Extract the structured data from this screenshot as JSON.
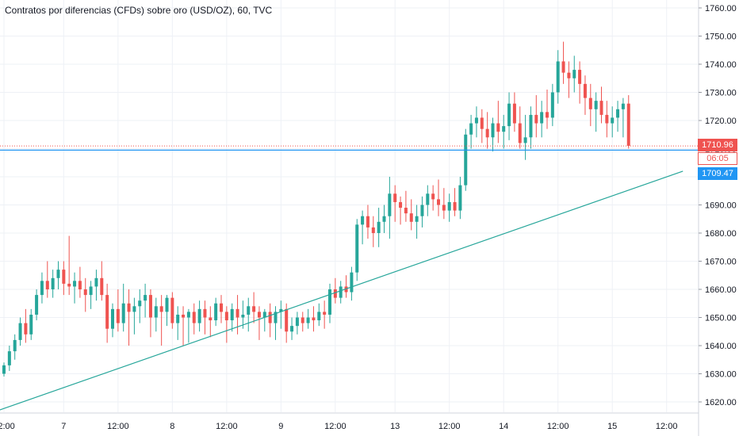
{
  "header": {
    "title": "Contratos por diferencias (CFDs) sobre oro (USD/OZ), 60, TVC"
  },
  "price_tags": {
    "last_price": "1710.96",
    "countdown": "06:05",
    "horizontal_line": "1709.47"
  },
  "colors": {
    "up": "#26a69a",
    "down": "#ef5350",
    "trendline": "#26a69a",
    "hline": "#2196f3",
    "grid": "#eef1f6",
    "axis_text": "#131722"
  },
  "chart_data": {
    "type": "candlestick",
    "title": "Contratos por diferencias (CFDs) sobre oro (USD/OZ), 60, TVC",
    "interval": "60",
    "xlabel": "",
    "ylabel": "",
    "ylim": [
      1615,
      1765
    ],
    "y_ticks": [
      "1620.00",
      "1630.00",
      "1640.00",
      "1650.00",
      "1660.00",
      "1670.00",
      "1680.00",
      "1690.00",
      "1700.00",
      "1710.00",
      "1720.00",
      "1730.00",
      "1740.00",
      "1750.00",
      "1760.00"
    ],
    "x_ticks": [
      {
        "label": "12:00",
        "idx": 0
      },
      {
        "label": "7",
        "idx": 11
      },
      {
        "label": "12:00",
        "idx": 21
      },
      {
        "label": "8",
        "idx": 31
      },
      {
        "label": "12:00",
        "idx": 41
      },
      {
        "label": "9",
        "idx": 51
      },
      {
        "label": "12:00",
        "idx": 61
      },
      {
        "label": "13",
        "idx": 72
      },
      {
        "label": "12:00",
        "idx": 82
      },
      {
        "label": "14",
        "idx": 92
      },
      {
        "label": "12:00",
        "idx": 102
      },
      {
        "label": "15",
        "idx": 112
      },
      {
        "label": "12:00",
        "idx": 122
      }
    ],
    "grid": true,
    "last_price": 1710.96,
    "horizontal_line_price": 1709.47,
    "trendline": {
      "from": {
        "idx": -1,
        "price": 1617
      },
      "to": {
        "idx": 125,
        "price": 1702
      }
    },
    "ohlc": [
      [
        1630,
        1634,
        1629,
        1633
      ],
      [
        1633,
        1640,
        1631,
        1638
      ],
      [
        1638,
        1644,
        1635,
        1642
      ],
      [
        1642,
        1650,
        1640,
        1648
      ],
      [
        1648,
        1653,
        1641,
        1644
      ],
      [
        1644,
        1653,
        1642,
        1651
      ],
      [
        1651,
        1660,
        1649,
        1658
      ],
      [
        1658,
        1666,
        1655,
        1663
      ],
      [
        1663,
        1670,
        1657,
        1660
      ],
      [
        1660,
        1667,
        1657,
        1664
      ],
      [
        1664,
        1670,
        1660,
        1667
      ],
      [
        1667,
        1670,
        1658,
        1662
      ],
      [
        1662,
        1679,
        1658,
        1661
      ],
      [
        1661,
        1666,
        1655,
        1663
      ],
      [
        1663,
        1668,
        1657,
        1660
      ],
      [
        1660,
        1664,
        1652,
        1658
      ],
      [
        1658,
        1663,
        1653,
        1661
      ],
      [
        1661,
        1667,
        1656,
        1664
      ],
      [
        1664,
        1670,
        1656,
        1658
      ],
      [
        1658,
        1662,
        1641,
        1646
      ],
      [
        1646,
        1655,
        1643,
        1653
      ],
      [
        1653,
        1660,
        1645,
        1648
      ],
      [
        1648,
        1662,
        1645,
        1655
      ],
      [
        1655,
        1660,
        1640,
        1652
      ],
      [
        1652,
        1657,
        1644,
        1654
      ],
      [
        1654,
        1660,
        1648,
        1656
      ],
      [
        1656,
        1662,
        1650,
        1658
      ],
      [
        1658,
        1660,
        1643,
        1650
      ],
      [
        1650,
        1657,
        1645,
        1654
      ],
      [
        1654,
        1658,
        1640,
        1652
      ],
      [
        1652,
        1658,
        1647,
        1657
      ],
      [
        1657,
        1659,
        1646,
        1648
      ],
      [
        1648,
        1654,
        1642,
        1651
      ],
      [
        1651,
        1654,
        1640,
        1650
      ],
      [
        1650,
        1653,
        1641,
        1652
      ],
      [
        1652,
        1655,
        1644,
        1648
      ],
      [
        1648,
        1656,
        1645,
        1653
      ],
      [
        1653,
        1656,
        1644,
        1650
      ],
      [
        1650,
        1654,
        1643,
        1649
      ],
      [
        1649,
        1657,
        1647,
        1655
      ],
      [
        1655,
        1658,
        1648,
        1652
      ],
      [
        1652,
        1654,
        1641,
        1649
      ],
      [
        1649,
        1655,
        1645,
        1653
      ],
      [
        1653,
        1658,
        1644,
        1650
      ],
      [
        1650,
        1656,
        1646,
        1651
      ],
      [
        1651,
        1657,
        1645,
        1654
      ],
      [
        1654,
        1659,
        1648,
        1652
      ],
      [
        1652,
        1654,
        1642,
        1650
      ],
      [
        1650,
        1653,
        1645,
        1652
      ],
      [
        1652,
        1655,
        1643,
        1648
      ],
      [
        1648,
        1654,
        1642,
        1652
      ],
      [
        1652,
        1656,
        1646,
        1653
      ],
      [
        1653,
        1655,
        1641,
        1645
      ],
      [
        1645,
        1650,
        1642,
        1647
      ],
      [
        1647,
        1652,
        1644,
        1650
      ],
      [
        1650,
        1652,
        1645,
        1648
      ],
      [
        1648,
        1653,
        1646,
        1650
      ],
      [
        1650,
        1654,
        1645,
        1649
      ],
      [
        1649,
        1655,
        1647,
        1652
      ],
      [
        1652,
        1656,
        1646,
        1651
      ],
      [
        1651,
        1662,
        1648,
        1660
      ],
      [
        1660,
        1664,
        1655,
        1657
      ],
      [
        1657,
        1663,
        1655,
        1661
      ],
      [
        1661,
        1665,
        1657,
        1659
      ],
      [
        1659,
        1668,
        1656,
        1666
      ],
      [
        1666,
        1685,
        1663,
        1683
      ],
      [
        1683,
        1688,
        1676,
        1686
      ],
      [
        1686,
        1690,
        1678,
        1682
      ],
      [
        1682,
        1686,
        1675,
        1680
      ],
      [
        1680,
        1689,
        1675,
        1684
      ],
      [
        1684,
        1690,
        1680,
        1686
      ],
      [
        1686,
        1700,
        1678,
        1694
      ],
      [
        1694,
        1697,
        1684,
        1691
      ],
      [
        1691,
        1693,
        1683,
        1689
      ],
      [
        1689,
        1695,
        1684,
        1687
      ],
      [
        1687,
        1692,
        1681,
        1684
      ],
      [
        1684,
        1690,
        1678,
        1686
      ],
      [
        1686,
        1693,
        1682,
        1690
      ],
      [
        1690,
        1697,
        1686,
        1694
      ],
      [
        1694,
        1697,
        1688,
        1692
      ],
      [
        1692,
        1699,
        1686,
        1690
      ],
      [
        1690,
        1696,
        1685,
        1688
      ],
      [
        1688,
        1694,
        1684,
        1691
      ],
      [
        1691,
        1696,
        1686,
        1688
      ],
      [
        1688,
        1700,
        1685,
        1697
      ],
      [
        1697,
        1717,
        1695,
        1715
      ],
      [
        1715,
        1722,
        1710,
        1719
      ],
      [
        1719,
        1725,
        1714,
        1721
      ],
      [
        1721,
        1724,
        1712,
        1717
      ],
      [
        1717,
        1723,
        1710,
        1714
      ],
      [
        1714,
        1721,
        1709,
        1719
      ],
      [
        1719,
        1727,
        1712,
        1716
      ],
      [
        1716,
        1722,
        1710,
        1718
      ],
      [
        1718,
        1730,
        1713,
        1726
      ],
      [
        1726,
        1730,
        1716,
        1719
      ],
      [
        1719,
        1725,
        1710,
        1712
      ],
      [
        1712,
        1722,
        1706,
        1714
      ],
      [
        1714,
        1725,
        1710,
        1722
      ],
      [
        1722,
        1729,
        1714,
        1719
      ],
      [
        1719,
        1727,
        1714,
        1723
      ],
      [
        1723,
        1731,
        1717,
        1721
      ],
      [
        1721,
        1733,
        1718,
        1730
      ],
      [
        1730,
        1745,
        1726,
        1741
      ],
      [
        1741,
        1748,
        1733,
        1737
      ],
      [
        1737,
        1741,
        1728,
        1735
      ],
      [
        1735,
        1743,
        1730,
        1738
      ],
      [
        1738,
        1741,
        1726,
        1733
      ],
      [
        1733,
        1736,
        1722,
        1728
      ],
      [
        1728,
        1733,
        1718,
        1724
      ],
      [
        1724,
        1730,
        1716,
        1727
      ],
      [
        1727,
        1732,
        1719,
        1722
      ],
      [
        1722,
        1727,
        1714,
        1719
      ],
      [
        1719,
        1725,
        1714,
        1721
      ],
      [
        1721,
        1727,
        1716,
        1724
      ],
      [
        1724,
        1728,
        1714,
        1726
      ],
      [
        1726,
        1729,
        1710,
        1711
      ]
    ]
  }
}
